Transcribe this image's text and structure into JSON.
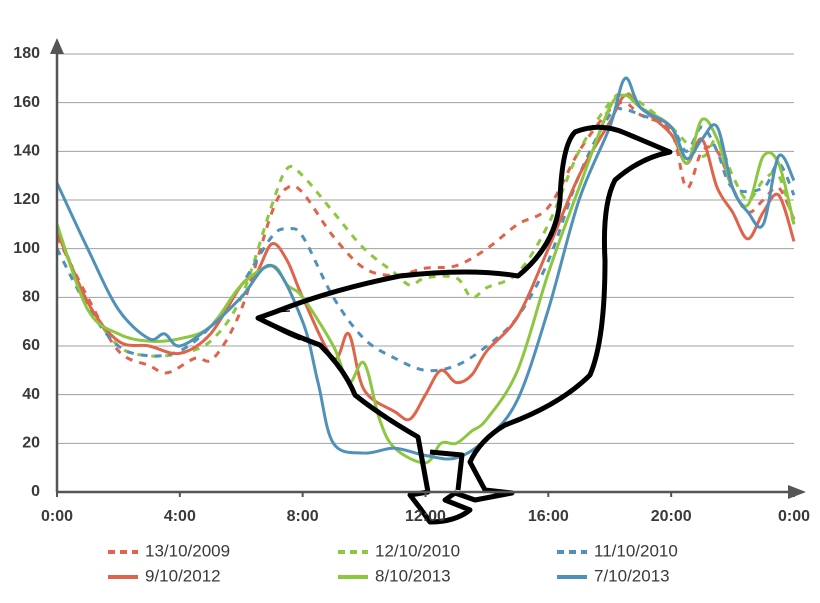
{
  "chart_data": {
    "type": "line",
    "xlim": [
      0,
      24
    ],
    "xticks": [
      {
        "value": 0,
        "label": "0:00"
      },
      {
        "value": 4,
        "label": "4:00"
      },
      {
        "value": 8,
        "label": "8:00"
      },
      {
        "value": 12,
        "label": "12:00"
      },
      {
        "value": 16,
        "label": "16:00"
      },
      {
        "value": 20,
        "label": "20:00"
      },
      {
        "value": 24,
        "label": "0:00"
      }
    ],
    "ylim": [
      0,
      180
    ],
    "yticks": [
      0,
      20,
      40,
      60,
      80,
      100,
      120,
      140,
      160,
      180
    ],
    "grid": true,
    "series": [
      {
        "name": "13/10/2009",
        "color": "#e0634b",
        "dash": true,
        "x": [
          0,
          1,
          2,
          3,
          3.6,
          4.5,
          5.1,
          6,
          7,
          7.5,
          8,
          9,
          10,
          11,
          12,
          13,
          14,
          15,
          16,
          17,
          18,
          18.5,
          19,
          20,
          20.5,
          21,
          21.5,
          22,
          22.5,
          23,
          23.5,
          24
        ],
        "values": [
          105,
          80,
          58,
          52,
          49,
          55,
          55,
          75,
          115,
          125,
          123,
          105,
          92,
          89,
          92,
          93,
          100,
          110,
          117,
          140,
          157,
          160,
          155,
          148,
          125,
          140,
          140,
          125,
          115,
          120,
          125,
          112
        ]
      },
      {
        "name": "12/10/2010",
        "color": "#8dc63f",
        "dash": true,
        "x": [
          0,
          1,
          2,
          3,
          4,
          5,
          6,
          7,
          7.5,
          8,
          9,
          10,
          11,
          11.5,
          12,
          13,
          13.5,
          14,
          15,
          16,
          17,
          18,
          18.5,
          19,
          20,
          21,
          21.5,
          22,
          22.5,
          23,
          23.5,
          24
        ],
        "values": [
          108,
          78,
          60,
          56,
          57,
          62,
          80,
          118,
          133,
          130,
          115,
          100,
          90,
          85,
          88,
          88,
          80,
          84,
          90,
          110,
          140,
          160,
          164,
          160,
          150,
          138,
          145,
          130,
          120,
          128,
          130,
          110
        ]
      },
      {
        "name": "11/10/2010",
        "color": "#4f91b9",
        "dash": true,
        "x": [
          0,
          1,
          2,
          3,
          4,
          5,
          6,
          7,
          7.5,
          8,
          9,
          10,
          11,
          12,
          13,
          14,
          15,
          16,
          17,
          18,
          18.5,
          19,
          20,
          20.5,
          21,
          21.5,
          22,
          23,
          23.5,
          24
        ],
        "values": [
          100,
          76,
          60,
          56,
          58,
          68,
          85,
          105,
          108,
          105,
          80,
          63,
          55,
          50,
          52,
          60,
          72,
          95,
          130,
          155,
          157,
          155,
          150,
          140,
          150,
          140,
          125,
          125,
          135,
          122
        ]
      },
      {
        "name": "9/10/2012",
        "color": "#e0634b",
        "dash": false,
        "x": [
          0,
          1,
          2,
          3,
          4,
          5,
          6,
          6.5,
          7,
          7.5,
          8,
          9,
          9.5,
          10,
          11,
          11.5,
          12,
          12.5,
          13,
          13.5,
          14,
          15,
          16,
          17,
          18,
          18.5,
          19,
          20,
          20.5,
          21,
          21.5,
          22,
          22.5,
          23,
          23.5,
          24
        ],
        "values": [
          107,
          78,
          62,
          60,
          57,
          65,
          85,
          90,
          102,
          95,
          80,
          55,
          65,
          42,
          33,
          30,
          40,
          50,
          45,
          48,
          58,
          72,
          100,
          130,
          152,
          163,
          158,
          147,
          135,
          145,
          125,
          115,
          104,
          115,
          122,
          103
        ]
      },
      {
        "name": "8/10/2013",
        "color": "#8dc63f",
        "dash": false,
        "x": [
          0,
          1,
          2,
          3,
          4,
          5,
          6,
          7,
          7.5,
          8,
          9,
          9.5,
          10,
          10.5,
          11,
          12,
          12.5,
          13,
          13.5,
          14,
          15,
          16,
          17,
          18,
          18.5,
          19,
          20,
          20.5,
          21,
          21.5,
          22,
          22.5,
          23,
          23.5,
          24
        ],
        "values": [
          110,
          75,
          65,
          62,
          63,
          68,
          85,
          93,
          85,
          80,
          60,
          45,
          53,
          30,
          18,
          12,
          20,
          20,
          25,
          30,
          50,
          90,
          125,
          158,
          163,
          158,
          150,
          135,
          153,
          145,
          125,
          118,
          138,
          135,
          110
        ]
      },
      {
        "name": "7/10/2013",
        "color": "#4f91b9",
        "dash": false,
        "x": [
          0,
          1,
          2,
          3,
          3.5,
          4,
          5,
          6,
          7,
          8,
          8.5,
          9,
          10,
          11,
          12,
          13,
          14,
          15,
          16,
          17,
          18,
          18.5,
          19,
          20,
          20.5,
          21,
          21.5,
          22,
          22.5,
          23,
          23.5,
          24
        ],
        "values": [
          127,
          100,
          75,
          63,
          65,
          60,
          68,
          80,
          93,
          70,
          45,
          20,
          16,
          18,
          15,
          14,
          22,
          38,
          75,
          120,
          150,
          170,
          158,
          150,
          137,
          145,
          150,
          125,
          115,
          110,
          138,
          128
        ]
      }
    ]
  }
}
